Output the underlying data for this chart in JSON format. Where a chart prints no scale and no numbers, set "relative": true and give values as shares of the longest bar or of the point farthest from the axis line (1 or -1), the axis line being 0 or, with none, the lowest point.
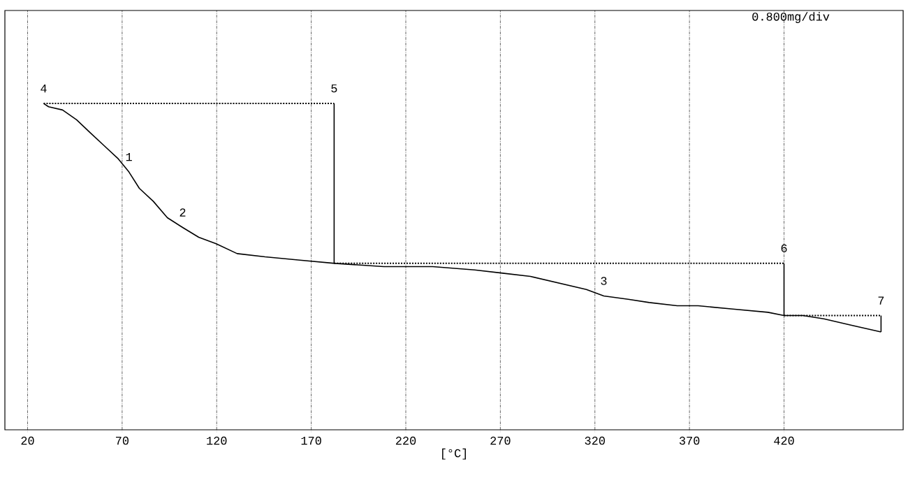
{
  "chart_data": {
    "type": "line",
    "relative": true,
    "xlabel": "[°C]",
    "xlim": [
      8,
      483
    ],
    "xticks": [
      20,
      70,
      120,
      170,
      220,
      270,
      320,
      370,
      420
    ],
    "grid": "x",
    "series": [
      {
        "color": "#000000",
        "line_style": "solid",
        "x": [
          28.5,
          31.1,
          38.5,
          45.9,
          53.2,
          60.6,
          68.0,
          73.6,
          79.1,
          86.5,
          93.9,
          102.0,
          110.5,
          119.7,
          130.8,
          145.6,
          164.0,
          182.5,
          208.4,
          234.2,
          256.4,
          271.2,
          285.9,
          300.7,
          315.5,
          324.7,
          337.6,
          348.7,
          363.5,
          374.6,
          393.0,
          411.5,
          420.0,
          430.0,
          441.1,
          455.8,
          471.3
        ],
        "values": [
          1.0,
          0.99,
          0.98,
          0.95,
          0.91,
          0.87,
          0.83,
          0.79,
          0.74,
          0.7,
          0.65,
          0.62,
          0.59,
          0.57,
          0.54,
          0.53,
          0.52,
          0.51,
          0.5,
          0.5,
          0.49,
          0.48,
          0.47,
          0.45,
          0.43,
          0.41,
          0.4,
          0.39,
          0.38,
          0.38,
          0.37,
          0.36,
          0.35,
          0.35,
          0.34,
          0.32,
          0.3
        ]
      },
      {
        "color": "#000000",
        "line_style": "dotted",
        "x": [
          28.5,
          182.1
        ],
        "values": [
          1.0,
          1.0
        ]
      },
      {
        "color": "#000000",
        "line_style": "solid",
        "x": [
          182.1,
          182.1
        ],
        "values": [
          1.0,
          0.51
        ]
      },
      {
        "color": "#000000",
        "line_style": "dotted",
        "x": [
          182.1,
          420.0
        ],
        "values": [
          0.51,
          0.51
        ]
      },
      {
        "color": "#000000",
        "line_style": "solid",
        "x": [
          420.0,
          420.0
        ],
        "values": [
          0.51,
          0.35
        ]
      },
      {
        "color": "#000000",
        "line_style": "dotted",
        "x": [
          420.0,
          471.3
        ],
        "values": [
          0.35,
          0.35
        ]
      },
      {
        "color": "#000000",
        "line_style": "solid",
        "x": [
          471.3,
          471.3
        ],
        "values": [
          0.35,
          0.3
        ]
      }
    ],
    "annotations": [
      {
        "text": "1",
        "x": 73.6,
        "y": 0.79
      },
      {
        "text": "2",
        "x": 102.0,
        "y": 0.62
      },
      {
        "text": "3",
        "x": 324.7,
        "y": 0.41
      },
      {
        "text": "4",
        "x": 28.5,
        "y": 1.0
      },
      {
        "text": "5",
        "x": 182.1,
        "y": 1.0
      },
      {
        "text": "6",
        "x": 420.0,
        "y": 0.51
      },
      {
        "text": "7",
        "x": 471.3,
        "y": 0.35
      },
      "0.800mg/div"
    ]
  }
}
